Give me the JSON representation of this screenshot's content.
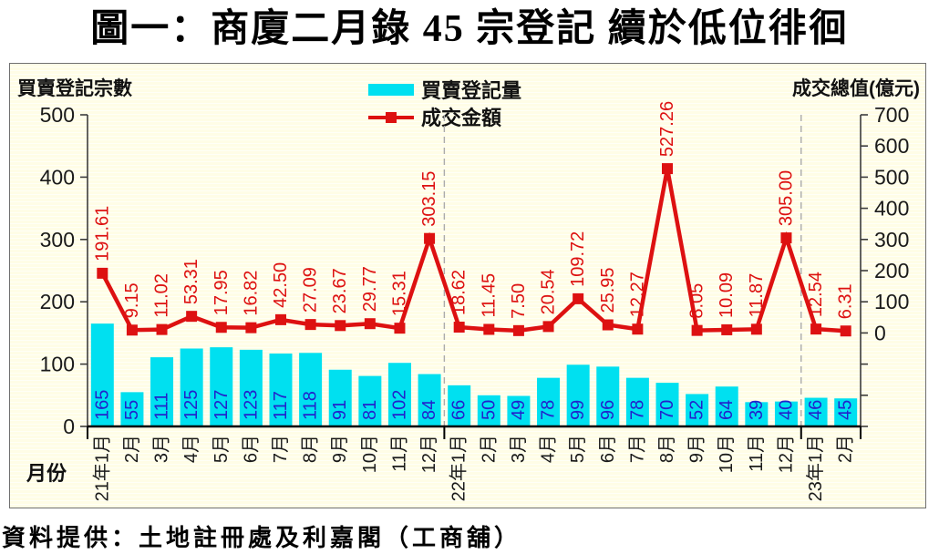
{
  "title": "圖一：商廈二月錄 45 宗登記  續於低位徘徊",
  "footer": "資料提供：土地註冊處及利嘉閣（工商舖）",
  "chart_data": {
    "type": "bar",
    "subtype": "combo-bar-line-dual-axis",
    "categories": [
      "21年1月",
      "2月",
      "3月",
      "4月",
      "5月",
      "6月",
      "7月",
      "8月",
      "9月",
      "10月",
      "11月",
      "12月",
      "22年1月",
      "2月",
      "3月",
      "4月",
      "5月",
      "6月",
      "7月",
      "8月",
      "9月",
      "10月",
      "11月",
      "12月",
      "23年1月",
      "2月"
    ],
    "series": [
      {
        "name": "買賣登記量",
        "type": "bar",
        "axis": "left",
        "color": "#00E0F0",
        "label_color": "#2222CC",
        "values": [
          165,
          55,
          111,
          125,
          127,
          123,
          117,
          118,
          91,
          81,
          102,
          84,
          66,
          50,
          49,
          78,
          99,
          96,
          78,
          70,
          52,
          64,
          39,
          40,
          46,
          45
        ]
      },
      {
        "name": "成交金額",
        "type": "line",
        "axis": "right",
        "color": "#DD1111",
        "label_color": "#DD1111",
        "values": [
          191.61,
          9.15,
          11.02,
          53.31,
          17.95,
          16.82,
          42.5,
          27.09,
          23.67,
          29.77,
          15.31,
          303.15,
          18.62,
          11.45,
          7.5,
          20.54,
          109.72,
          25.95,
          12.27,
          527.26,
          8.05,
          10.09,
          11.87,
          305.0,
          12.54,
          6.31
        ],
        "labels": [
          "191.61",
          "9.15",
          "11.02",
          "53.31",
          "17.95",
          "16.82",
          "42.50",
          "27.09",
          "23.67",
          "29.77",
          "15.31",
          "303.15",
          "18.62",
          "11.45",
          "7.50",
          "20.54",
          "109.72",
          "25.95",
          "12.27",
          "527.26",
          "8.05",
          "10.09",
          "11.87",
          "305.00",
          "12.54",
          "6.31"
        ]
      }
    ],
    "left_axis": {
      "title": "買賣登記宗數",
      "min": 0,
      "max": 500,
      "step": 100,
      "tick_labels": [
        "0",
        "100",
        "200",
        "300",
        "400",
        "500"
      ]
    },
    "right_axis": {
      "title": "成交總值(億元)",
      "min": -300,
      "max": 700,
      "step": 100,
      "label_min": 0,
      "tick_labels": [
        "0",
        "100",
        "200",
        "300",
        "400",
        "500",
        "600",
        "700"
      ]
    },
    "x_axis": {
      "title": "月份",
      "year_separator_indices": [
        12,
        24
      ],
      "major_tick_indices": [
        0,
        12,
        24,
        26
      ]
    },
    "legend": {
      "position": "top-center",
      "entries": [
        {
          "label": "買賣登記量",
          "marker": "bar-swatch"
        },
        {
          "label": "成交金額",
          "marker": "line-with-square"
        }
      ]
    },
    "grid": "horizontal-stripes-background",
    "panel_background": "#FFFDE6",
    "panel_stripe": "#FFFFF7"
  }
}
